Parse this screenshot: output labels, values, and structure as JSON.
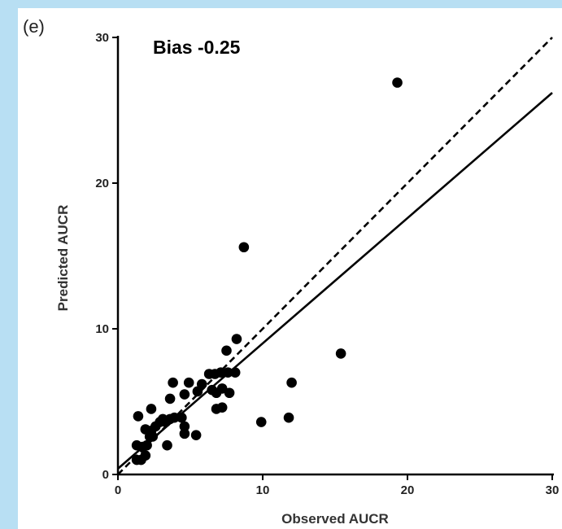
{
  "chart_data": {
    "type": "scatter",
    "panel_label": "(e)",
    "annotation": "Bias -0.25",
    "xlabel": "Observed AUCR",
    "ylabel": "Predicted AUCR",
    "xlim": [
      0,
      30
    ],
    "ylim": [
      0,
      30
    ],
    "xticks": [
      "0",
      "10",
      "20",
      "30"
    ],
    "yticks": [
      "0",
      "10",
      "20",
      "30"
    ],
    "grid": false,
    "lines": [
      {
        "kind": "identity",
        "style": "dashed",
        "x": [
          0,
          30
        ],
        "y": [
          0,
          30
        ]
      },
      {
        "kind": "regression",
        "style": "solid",
        "x": [
          0,
          30
        ],
        "y": [
          0.4,
          26.2
        ]
      }
    ],
    "points": [
      [
        19.3,
        26.9
      ],
      [
        8.7,
        15.6
      ],
      [
        15.4,
        8.3
      ],
      [
        12.0,
        6.3
      ],
      [
        11.8,
        3.9
      ],
      [
        9.9,
        3.6
      ],
      [
        8.2,
        9.3
      ],
      [
        7.5,
        8.5
      ],
      [
        8.1,
        7.0
      ],
      [
        7.6,
        7.0
      ],
      [
        7.1,
        7.0
      ],
      [
        6.7,
        6.9
      ],
      [
        6.3,
        6.9
      ],
      [
        7.7,
        5.6
      ],
      [
        7.2,
        5.9
      ],
      [
        6.8,
        5.6
      ],
      [
        6.5,
        5.8
      ],
      [
        5.8,
        6.2
      ],
      [
        5.5,
        5.7
      ],
      [
        7.2,
        4.6
      ],
      [
        6.8,
        4.5
      ],
      [
        3.8,
        6.3
      ],
      [
        4.9,
        6.3
      ],
      [
        4.6,
        5.5
      ],
      [
        3.6,
        5.2
      ],
      [
        5.4,
        2.7
      ],
      [
        4.4,
        3.9
      ],
      [
        3.9,
        3.9
      ],
      [
        3.6,
        3.8
      ],
      [
        3.3,
        3.6
      ],
      [
        4.6,
        3.3
      ],
      [
        4.6,
        2.8
      ],
      [
        2.3,
        4.5
      ],
      [
        1.4,
        4.0
      ],
      [
        1.9,
        3.1
      ],
      [
        2.3,
        3.0
      ],
      [
        2.6,
        3.3
      ],
      [
        2.9,
        3.6
      ],
      [
        3.1,
        3.8
      ],
      [
        2.2,
        2.6
      ],
      [
        2.4,
        2.6
      ],
      [
        3.4,
        2.0
      ],
      [
        2.0,
        2.0
      ],
      [
        1.7,
        1.9
      ],
      [
        1.3,
        2.0
      ],
      [
        1.9,
        1.3
      ],
      [
        1.6,
        1.0
      ],
      [
        1.3,
        1.0
      ]
    ]
  }
}
